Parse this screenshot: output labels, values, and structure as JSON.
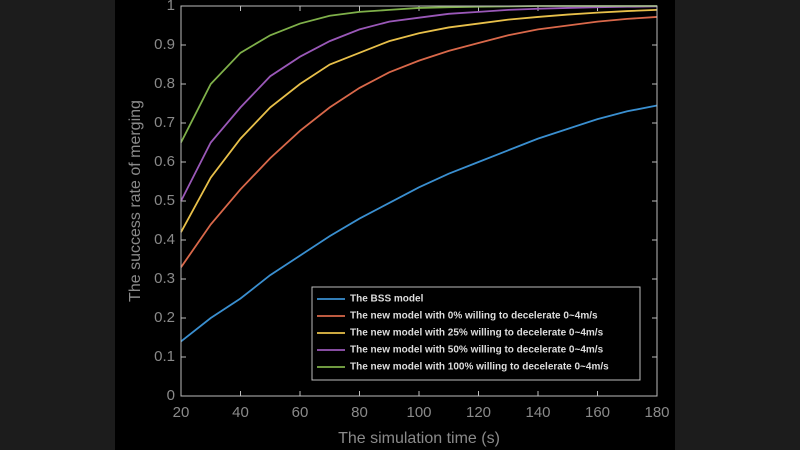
{
  "chart_data": {
    "type": "line",
    "xlabel": "The simulation time (s)",
    "ylabel": "The success rate of merging",
    "x": [
      20,
      30,
      40,
      50,
      60,
      70,
      80,
      90,
      100,
      110,
      120,
      130,
      140,
      150,
      160,
      170,
      180
    ],
    "xlim": [
      20,
      180
    ],
    "xticks": [
      20,
      40,
      60,
      80,
      100,
      120,
      140,
      160,
      180
    ],
    "ylim": [
      0,
      1
    ],
    "yticks": [
      0,
      0.1,
      0.2,
      0.3,
      0.4,
      0.5,
      0.6,
      0.7,
      0.8,
      0.9,
      1
    ],
    "legend": "lower right",
    "series": [
      {
        "name": "The BSS model",
        "color": "#3a8fd0",
        "values": [
          0.14,
          0.2,
          0.25,
          0.31,
          0.36,
          0.41,
          0.455,
          0.495,
          0.535,
          0.57,
          0.6,
          0.63,
          0.66,
          0.685,
          0.71,
          0.73,
          0.745
        ]
      },
      {
        "name": "The new model with 0% willing to decelerate 0~4m/s",
        "color": "#d9684a",
        "values": [
          0.33,
          0.44,
          0.53,
          0.61,
          0.68,
          0.74,
          0.79,
          0.83,
          0.86,
          0.885,
          0.905,
          0.925,
          0.94,
          0.95,
          0.96,
          0.967,
          0.972
        ]
      },
      {
        "name": "The new model with 25% willing to decelerate 0~4m/s",
        "color": "#e8c04a",
        "values": [
          0.42,
          0.56,
          0.66,
          0.74,
          0.8,
          0.85,
          0.88,
          0.91,
          0.93,
          0.945,
          0.955,
          0.965,
          0.972,
          0.978,
          0.983,
          0.987,
          0.99
        ]
      },
      {
        "name": "The new model with 50% willing to decelerate 0~4m/s",
        "color": "#9a58b8",
        "values": [
          0.5,
          0.65,
          0.74,
          0.82,
          0.87,
          0.91,
          0.94,
          0.96,
          0.97,
          0.98,
          0.985,
          0.99,
          0.993,
          0.995,
          0.997,
          0.998,
          0.999
        ]
      },
      {
        "name": "The new model with 100% willing to decelerate 0~4m/s",
        "color": "#7fb04a",
        "values": [
          0.65,
          0.8,
          0.88,
          0.925,
          0.955,
          0.975,
          0.985,
          0.99,
          0.995,
          0.997,
          0.998,
          0.999,
          1,
          1,
          1,
          1,
          1
        ]
      }
    ]
  }
}
